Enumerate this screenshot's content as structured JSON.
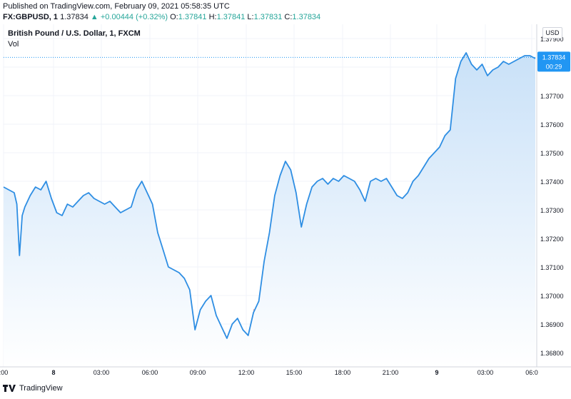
{
  "header": {
    "published": "Published on TradingView.com, February 09, 2021 05:58:35 UTC",
    "symbol": "FX:GBPUSD, 1",
    "last": "1.37834",
    "change": "+0.00444 (+0.32%)",
    "o_label": "O:",
    "o": "1.37841",
    "h_label": "H:",
    "h": "1.37841",
    "l_label": "L:",
    "l": "1.37831",
    "c_label": "C:",
    "c": "1.37834"
  },
  "legend": {
    "title": "British Pound / U.S. Dollar, 1, FXCM",
    "vol": "Vol"
  },
  "currency_button": "USD",
  "price_tag": {
    "price": "1.37834",
    "countdown": "00:29"
  },
  "footer": {
    "brand": "TradingView"
  },
  "colors": {
    "line": "#2e8ee3",
    "area_top": "#c9e1f8",
    "area_bottom": "#ffffff",
    "vol_up": "#8fcfc6",
    "vol_down": "#f1a8a8",
    "tag_bg": "#2196f3",
    "axis_text": "#131722"
  },
  "chart_data": {
    "type": "area",
    "title": "British Pound / U.S. Dollar, 1, FXCM",
    "y_ticks": [
      "1.36800",
      "1.36900",
      "1.37000",
      "1.37100",
      "1.37200",
      "1.37300",
      "1.37400",
      "1.37500",
      "1.37600",
      "1.37700",
      "1.37800",
      "1.37900"
    ],
    "ylim": [
      1.3675,
      1.3795
    ],
    "x_ticks": [
      ":00",
      "8",
      "03:00",
      "06:00",
      "09:00",
      "12:00",
      "15:00",
      "18:00",
      "21:00",
      "9",
      "03:00",
      "06:0"
    ],
    "x": [
      0,
      2,
      4,
      5,
      6,
      7,
      8,
      10,
      12,
      14,
      16,
      18,
      20,
      22,
      24,
      26,
      28,
      30,
      32,
      34,
      36,
      38,
      40,
      42,
      44,
      46,
      48,
      50,
      52,
      54,
      56,
      58,
      60,
      62,
      64,
      66,
      68,
      70,
      72,
      74,
      76,
      78,
      80,
      82,
      84,
      86,
      88,
      90,
      92,
      94,
      96,
      98,
      100,
      102,
      104,
      106,
      108,
      110,
      112,
      114,
      116,
      118,
      120,
      122,
      124,
      126,
      128,
      130,
      132,
      134,
      136,
      138,
      140,
      142,
      144,
      146,
      148,
      150,
      152,
      154,
      156,
      158,
      160,
      162,
      164,
      166,
      168,
      170,
      172,
      174,
      176,
      178,
      180,
      182,
      184,
      186,
      188,
      190,
      192,
      194,
      196,
      198,
      200
    ],
    "series": [
      {
        "values": [
          1.3738,
          1.3737,
          1.3736,
          1.3732,
          1.3714,
          1.3728,
          1.3731,
          1.3735,
          1.3738,
          1.3737,
          1.374,
          1.3734,
          1.3729,
          1.3728,
          1.3732,
          1.3731,
          1.3733,
          1.3735,
          1.3736,
          1.3734,
          1.3733,
          1.3732,
          1.3733,
          1.3731,
          1.3729,
          1.373,
          1.3731,
          1.3737,
          1.374,
          1.3736,
          1.3732,
          1.3722,
          1.3716,
          1.371,
          1.3709,
          1.3708,
          1.3706,
          1.3702,
          1.3688,
          1.3695,
          1.3698,
          1.37,
          1.3693,
          1.3689,
          1.3685,
          1.369,
          1.3692,
          1.3688,
          1.3686,
          1.3694,
          1.3698,
          1.3712,
          1.3722,
          1.3735,
          1.3742,
          1.3747,
          1.3744,
          1.3736,
          1.3724,
          1.3732,
          1.3738,
          1.374,
          1.3741,
          1.3739,
          1.3741,
          1.374,
          1.3742,
          1.3741,
          1.374,
          1.3737,
          1.3733,
          1.374,
          1.3741,
          1.374,
          1.3741,
          1.3738,
          1.3735,
          1.3734,
          1.3736,
          1.374,
          1.3742,
          1.3745,
          1.3748,
          1.375,
          1.3752,
          1.3756,
          1.3758,
          1.3776,
          1.3782,
          1.3785,
          1.3781,
          1.3779,
          1.3781,
          1.3777,
          1.3779,
          1.378,
          1.3782,
          1.3781,
          1.3782,
          1.3783,
          1.3784,
          1.3784,
          1.3783
        ]
      }
    ],
    "volume_label": "Vol",
    "last_price": 1.37834,
    "grid": true
  }
}
